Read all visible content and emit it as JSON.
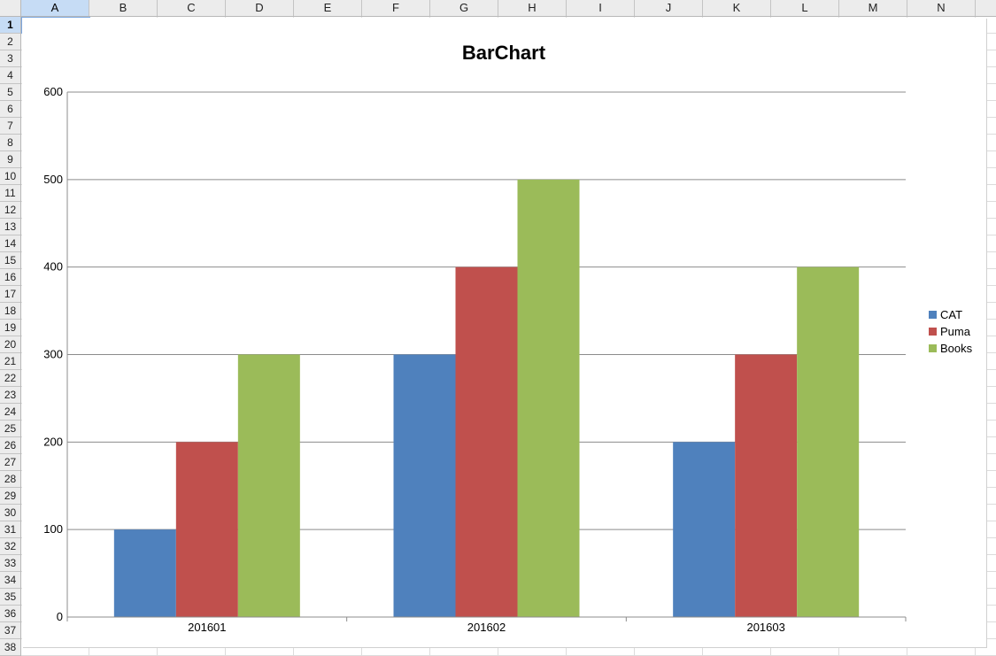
{
  "spreadsheet": {
    "columns": [
      "A",
      "B",
      "C",
      "D",
      "E",
      "F",
      "G",
      "H",
      "I",
      "J",
      "K",
      "L",
      "M",
      "N"
    ],
    "rows": [
      "1",
      "2",
      "3",
      "4",
      "5",
      "6",
      "7",
      "8",
      "9",
      "10",
      "11",
      "12",
      "13",
      "14",
      "15",
      "16",
      "17",
      "18",
      "19",
      "20",
      "21",
      "22",
      "23",
      "24",
      "25",
      "26",
      "27",
      "28",
      "29",
      "30",
      "31",
      "32",
      "33",
      "34",
      "35",
      "36",
      "37",
      "38"
    ],
    "active_cell": "A1"
  },
  "chart_data": {
    "type": "bar",
    "title": "BarChart",
    "categories": [
      "201601",
      "201602",
      "201603"
    ],
    "series": [
      {
        "name": "CAT",
        "color": "#4f81bd",
        "values": [
          100,
          300,
          200
        ]
      },
      {
        "name": "Puma",
        "color": "#c0504d",
        "values": [
          200,
          400,
          300
        ]
      },
      {
        "name": "Books",
        "color": "#9bbb59",
        "values": [
          300,
          500,
          400
        ]
      }
    ],
    "ylim": [
      0,
      600
    ],
    "yticks": [
      0,
      100,
      200,
      300,
      400,
      500,
      600
    ],
    "grid": true,
    "legend": "right"
  }
}
